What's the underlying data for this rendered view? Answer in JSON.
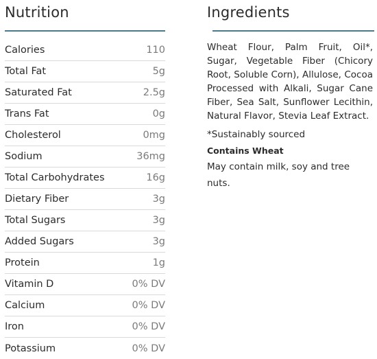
{
  "nutrition": {
    "title": "Nutrition",
    "rows": [
      {
        "label": "Calories",
        "value": "110"
      },
      {
        "label": "Total Fat",
        "value": "5g"
      },
      {
        "label": "Saturated Fat",
        "value": "2.5g"
      },
      {
        "label": "Trans Fat",
        "value": "0g"
      },
      {
        "label": "Cholesterol",
        "value": "0mg"
      },
      {
        "label": "Sodium",
        "value": "36mg"
      },
      {
        "label": "Total Carbohydrates",
        "value": "16g"
      },
      {
        "label": "Dietary Fiber",
        "value": "3g"
      },
      {
        "label": "Total Sugars",
        "value": "3g"
      },
      {
        "label": "Added Sugars",
        "value": "3g"
      },
      {
        "label": "Protein",
        "value": "1g"
      },
      {
        "label": "Vitamin D",
        "value": "0% DV"
      },
      {
        "label": "Calcium",
        "value": "0% DV"
      },
      {
        "label": "Iron",
        "value": "0% DV"
      },
      {
        "label": "Potassium",
        "value": "0% DV"
      }
    ]
  },
  "ingredients": {
    "title": "Ingredients",
    "text": "Wheat Flour, Palm Fruit, Oil*, Sugar, Vegetable Fiber (Chicory Root, Soluble Corn), Allulose, Cocoa Processed with Alkali, Sugar Cane Fiber, Sea Salt, Sunflower Lecithin, Natural Flavor, Stevia Leaf Extract.",
    "sustainably": "*Sustainably sourced",
    "contains": "Contains Wheat",
    "may_contain": "May contain milk, soy and tree nuts."
  },
  "colors": {
    "rule": "#4a7a8a",
    "text": "#2b2b2b",
    "value": "#7a7a7a"
  }
}
